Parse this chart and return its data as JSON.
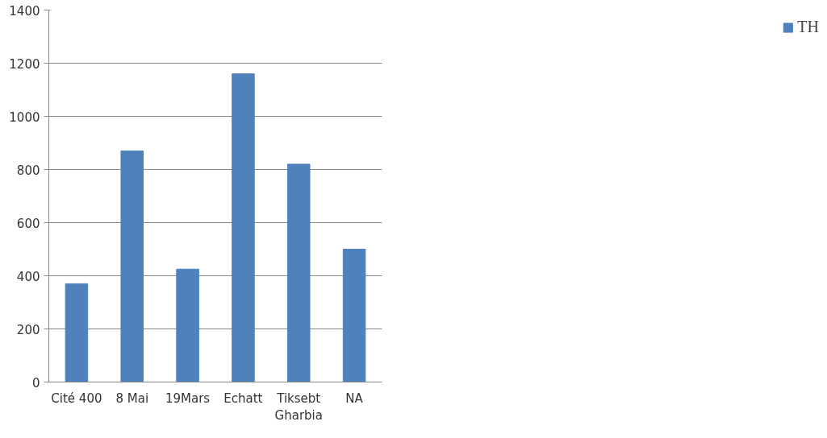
{
  "chart_data": {
    "type": "bar",
    "categories": [
      "Cité 400",
      "8 Mai",
      "19Mars",
      "Echatt",
      "Tiksebt\nGharbia",
      "NA"
    ],
    "series": [
      {
        "name": "TH",
        "color": "#4f81bd",
        "values": [
          370,
          870,
          425,
          1160,
          820,
          500
        ]
      }
    ],
    "ylim": [
      0,
      1400
    ],
    "yticks": [
      0,
      200,
      400,
      600,
      800,
      1000,
      1200,
      1400
    ],
    "grid": "y",
    "legend": "right"
  }
}
